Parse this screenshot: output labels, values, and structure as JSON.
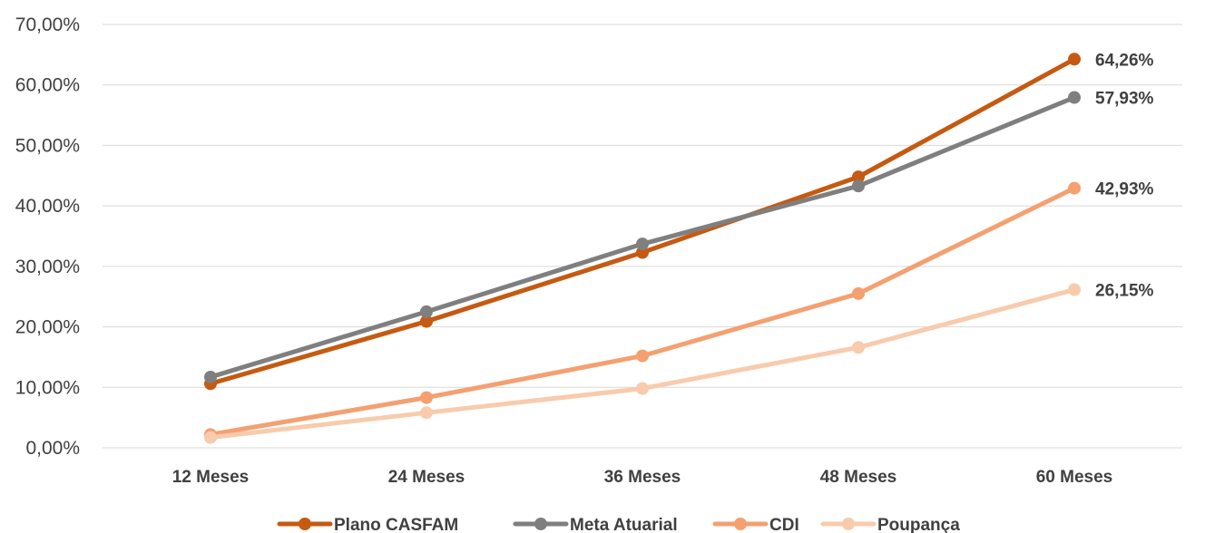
{
  "chart_data": {
    "type": "line",
    "categories": [
      "12 Meses",
      "24 Meses",
      "36 Meses",
      "48 Meses",
      "60 Meses"
    ],
    "y_ticks": [
      "0,00%",
      "10,00%",
      "20,00%",
      "30,00%",
      "40,00%",
      "50,00%",
      "60,00%",
      "70,00%"
    ],
    "ylim": [
      0,
      70
    ],
    "grid": true,
    "legend_position": "bottom",
    "series": [
      {
        "name": "Plano CASFAM",
        "color": "#c55a11",
        "values": [
          10.6,
          20.9,
          32.3,
          44.8,
          64.26
        ],
        "end_label": "64,26%"
      },
      {
        "name": "Meta Atuarial",
        "color": "#7f7f7f",
        "values": [
          11.7,
          22.5,
          33.7,
          43.3,
          57.93
        ],
        "end_label": "57,93%"
      },
      {
        "name": "CDI",
        "color": "#f4a070",
        "values": [
          2.2,
          8.3,
          15.2,
          25.5,
          42.93
        ],
        "end_label": "42,93%"
      },
      {
        "name": "Poupança",
        "color": "#f8cbad",
        "values": [
          1.7,
          5.8,
          9.8,
          16.6,
          26.15
        ],
        "end_label": "26,15%"
      }
    ]
  }
}
